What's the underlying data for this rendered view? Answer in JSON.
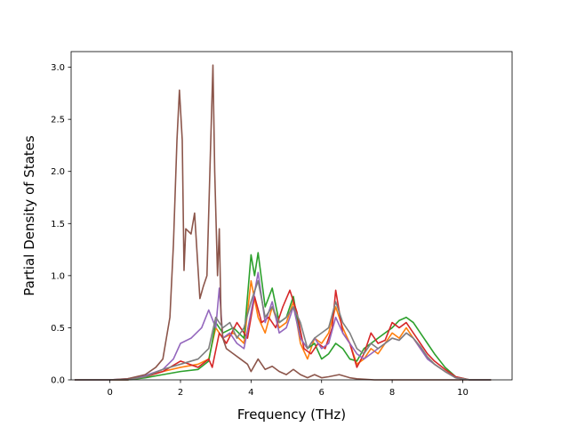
{
  "chart_data": {
    "type": "line",
    "title": "",
    "xlabel": "Frequency (THz)",
    "ylabel": "Partial Density of States",
    "xlim": [
      -1.1,
      11.4
    ],
    "ylim": [
      0.0,
      3.15
    ],
    "x_ticks": [
      0,
      2,
      4,
      6,
      8,
      10
    ],
    "y_ticks": [
      0.0,
      0.5,
      1.0,
      1.5,
      2.0,
      2.5,
      3.0
    ],
    "x_tick_labels": [
      "0",
      "2",
      "4",
      "6",
      "8",
      "10"
    ],
    "y_tick_labels": [
      "0.0",
      "0.5",
      "1.0",
      "1.5",
      "2.0",
      "2.5",
      "3.0"
    ],
    "grid": false,
    "legend": "none",
    "series": [
      {
        "color": "#ff7f0e",
        "x": [
          -1.0,
          0.0,
          0.5,
          1.0,
          1.5,
          2.0,
          2.5,
          2.8,
          3.0,
          3.2,
          3.5,
          3.8,
          4.0,
          4.2,
          4.4,
          4.6,
          4.8,
          5.0,
          5.2,
          5.4,
          5.6,
          5.8,
          6.0,
          6.2,
          6.4,
          6.6,
          6.8,
          7.0,
          7.2,
          7.4,
          7.6,
          7.8,
          8.0,
          8.2,
          8.4,
          8.6,
          8.8,
          9.0,
          9.2,
          9.5,
          9.8,
          10.2,
          10.8
        ],
        "y": [
          0.0,
          0.0,
          0.0,
          0.03,
          0.08,
          0.12,
          0.15,
          0.2,
          0.5,
          0.4,
          0.45,
          0.35,
          0.95,
          0.6,
          0.45,
          0.7,
          0.5,
          0.55,
          0.75,
          0.35,
          0.2,
          0.4,
          0.35,
          0.45,
          0.7,
          0.5,
          0.35,
          0.15,
          0.2,
          0.3,
          0.25,
          0.35,
          0.45,
          0.4,
          0.5,
          0.4,
          0.3,
          0.22,
          0.15,
          0.08,
          0.02,
          0.0,
          0.0
        ]
      },
      {
        "color": "#2ca02c",
        "x": [
          -1.0,
          0.0,
          0.5,
          1.0,
          1.5,
          2.0,
          2.5,
          2.8,
          3.0,
          3.2,
          3.5,
          3.8,
          4.0,
          4.1,
          4.2,
          4.4,
          4.6,
          4.8,
          5.0,
          5.2,
          5.4,
          5.6,
          5.8,
          6.0,
          6.2,
          6.4,
          6.6,
          6.8,
          7.0,
          7.2,
          7.4,
          7.6,
          7.8,
          8.0,
          8.2,
          8.4,
          8.6,
          8.8,
          9.0,
          9.2,
          9.5,
          9.8,
          10.2,
          10.8
        ],
        "y": [
          0.0,
          0.0,
          0.0,
          0.02,
          0.05,
          0.08,
          0.1,
          0.18,
          0.55,
          0.45,
          0.5,
          0.4,
          1.2,
          1.0,
          1.22,
          0.7,
          0.88,
          0.55,
          0.6,
          0.8,
          0.4,
          0.3,
          0.35,
          0.2,
          0.25,
          0.35,
          0.3,
          0.2,
          0.18,
          0.3,
          0.35,
          0.4,
          0.45,
          0.5,
          0.57,
          0.6,
          0.55,
          0.45,
          0.35,
          0.25,
          0.12,
          0.03,
          0.0,
          0.0
        ]
      },
      {
        "color": "#d62728",
        "x": [
          -1.0,
          0.0,
          0.5,
          1.0,
          1.5,
          2.0,
          2.5,
          2.8,
          2.9,
          3.1,
          3.3,
          3.6,
          3.9,
          4.1,
          4.3,
          4.5,
          4.7,
          4.9,
          5.1,
          5.3,
          5.5,
          5.7,
          5.9,
          6.1,
          6.3,
          6.4,
          6.6,
          6.8,
          7.0,
          7.2,
          7.4,
          7.6,
          7.8,
          8.0,
          8.2,
          8.4,
          8.6,
          8.8,
          9.0,
          9.2,
          9.5,
          9.8,
          10.2,
          10.8
        ],
        "y": [
          0.0,
          0.0,
          0.0,
          0.03,
          0.08,
          0.18,
          0.12,
          0.2,
          0.12,
          0.45,
          0.35,
          0.55,
          0.4,
          0.8,
          0.55,
          0.6,
          0.5,
          0.7,
          0.86,
          0.65,
          0.3,
          0.25,
          0.35,
          0.3,
          0.5,
          0.86,
          0.45,
          0.35,
          0.12,
          0.25,
          0.45,
          0.35,
          0.38,
          0.55,
          0.5,
          0.55,
          0.45,
          0.35,
          0.25,
          0.18,
          0.1,
          0.03,
          0.0,
          0.0
        ]
      },
      {
        "color": "#9467bd",
        "x": [
          -1.0,
          0.0,
          0.5,
          1.0,
          1.5,
          1.8,
          2.0,
          2.3,
          2.6,
          2.8,
          3.0,
          3.1,
          3.2,
          3.4,
          3.6,
          3.8,
          4.0,
          4.2,
          4.4,
          4.6,
          4.8,
          5.0,
          5.2,
          5.4,
          5.6,
          5.8,
          6.0,
          6.2,
          6.4,
          6.6,
          6.8,
          7.0,
          7.2,
          7.4,
          7.6,
          7.8,
          8.0,
          8.2,
          8.4,
          8.6,
          8.8,
          9.0,
          9.2,
          9.5,
          9.8,
          10.2,
          10.8
        ],
        "y": [
          0.0,
          0.0,
          0.01,
          0.04,
          0.1,
          0.2,
          0.35,
          0.4,
          0.5,
          0.67,
          0.5,
          0.88,
          0.4,
          0.45,
          0.35,
          0.3,
          0.65,
          1.03,
          0.55,
          0.75,
          0.45,
          0.5,
          0.7,
          0.4,
          0.3,
          0.4,
          0.3,
          0.35,
          0.6,
          0.45,
          0.35,
          0.25,
          0.2,
          0.25,
          0.3,
          0.35,
          0.4,
          0.38,
          0.45,
          0.4,
          0.3,
          0.2,
          0.15,
          0.08,
          0.02,
          0.0,
          0.0
        ]
      },
      {
        "color": "#8c564b",
        "x": [
          -1.0,
          0.0,
          0.5,
          1.0,
          1.3,
          1.5,
          1.7,
          1.8,
          1.9,
          1.97,
          2.05,
          2.1,
          2.15,
          2.3,
          2.4,
          2.55,
          2.65,
          2.75,
          2.85,
          2.92,
          2.97,
          3.05,
          3.1,
          3.15,
          3.2,
          3.3,
          3.5,
          3.7,
          3.9,
          4.0,
          4.2,
          4.4,
          4.6,
          4.8,
          5.0,
          5.2,
          5.4,
          5.6,
          5.8,
          6.0,
          6.2,
          6.5,
          6.8,
          7.0,
          7.5,
          8.0,
          9.0,
          10.0,
          10.8
        ],
        "y": [
          0.0,
          0.0,
          0.01,
          0.05,
          0.12,
          0.2,
          0.6,
          1.3,
          2.3,
          2.78,
          2.3,
          1.05,
          1.45,
          1.4,
          1.6,
          0.78,
          0.9,
          1.0,
          2.2,
          3.02,
          2.0,
          1.0,
          1.45,
          0.6,
          0.4,
          0.3,
          0.25,
          0.2,
          0.15,
          0.08,
          0.2,
          0.1,
          0.13,
          0.08,
          0.05,
          0.1,
          0.05,
          0.02,
          0.05,
          0.02,
          0.03,
          0.05,
          0.02,
          0.01,
          0.0,
          0.0,
          0.0,
          0.0,
          0.0
        ]
      },
      {
        "color": "#7f7f7f",
        "x": [
          -1.0,
          0.0,
          0.5,
          1.0,
          1.5,
          2.0,
          2.5,
          2.8,
          3.0,
          3.2,
          3.4,
          3.6,
          3.8,
          4.0,
          4.2,
          4.4,
          4.6,
          4.8,
          5.0,
          5.2,
          5.4,
          5.6,
          5.8,
          6.0,
          6.2,
          6.4,
          6.6,
          6.8,
          7.0,
          7.2,
          7.4,
          7.6,
          7.8,
          8.0,
          8.2,
          8.4,
          8.6,
          8.8,
          9.0,
          9.2,
          9.5,
          9.8,
          10.2,
          10.8
        ],
        "y": [
          0.0,
          0.0,
          0.0,
          0.03,
          0.1,
          0.15,
          0.2,
          0.3,
          0.6,
          0.5,
          0.55,
          0.4,
          0.5,
          0.75,
          0.95,
          0.6,
          0.7,
          0.55,
          0.6,
          0.7,
          0.55,
          0.3,
          0.4,
          0.45,
          0.5,
          0.75,
          0.55,
          0.45,
          0.3,
          0.25,
          0.35,
          0.3,
          0.35,
          0.4,
          0.38,
          0.45,
          0.4,
          0.32,
          0.22,
          0.15,
          0.08,
          0.02,
          0.0,
          0.0
        ]
      }
    ]
  }
}
